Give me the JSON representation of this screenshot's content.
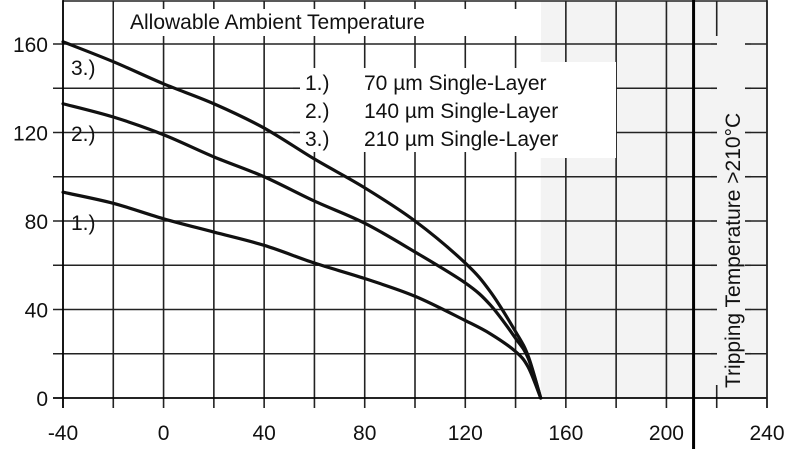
{
  "chart_data": {
    "type": "line",
    "title": "Allowable Ambient Temperature",
    "xlabel": "",
    "ylabel": "",
    "xlim": [
      -40,
      240
    ],
    "ylim": [
      0,
      180
    ],
    "x_ticks": [
      -40,
      0,
      40,
      80,
      120,
      160,
      200,
      240
    ],
    "y_ticks": [
      0,
      40,
      80,
      120,
      160
    ],
    "grid": true,
    "x_grid_step": 20,
    "y_grid_step": 20,
    "series": [
      {
        "name": "70 µm Single-Layer",
        "marker": "1.)",
        "x": [
          -40,
          -20,
          0,
          20,
          40,
          60,
          80,
          100,
          120,
          130,
          140,
          145,
          150
        ],
        "values": [
          93,
          88,
          81,
          75,
          69,
          61,
          54,
          46,
          35,
          29,
          21,
          14,
          0
        ]
      },
      {
        "name": "140 µm Single-Layer",
        "marker": "2.)",
        "x": [
          -40,
          -20,
          0,
          20,
          40,
          60,
          80,
          100,
          120,
          130,
          140,
          145,
          150
        ],
        "values": [
          133,
          127,
          119,
          109,
          100,
          89,
          79,
          66,
          52,
          42,
          27,
          18,
          0
        ]
      },
      {
        "name": "210 µm Single-Layer",
        "marker": "3.)",
        "x": [
          -40,
          -20,
          0,
          20,
          40,
          60,
          80,
          100,
          120,
          130,
          140,
          145,
          150
        ],
        "values": [
          161,
          152,
          142,
          133,
          122,
          108,
          95,
          80,
          61,
          48,
          30,
          19,
          0
        ]
      }
    ],
    "annotations": [
      {
        "text": "Tripping Temperature >210°C",
        "x": 210,
        "orientation": "vertical"
      },
      {
        "text": "shaded region",
        "x_from": 150,
        "x_to": 240
      }
    ],
    "legend": {
      "position": "upper-center",
      "entries": [
        {
          "marker": "1.)",
          "label": "70 µm Single-Layer"
        },
        {
          "marker": "2.)",
          "label": "140 µm Single-Layer"
        },
        {
          "marker": "3.)",
          "label": "210 µm Single-Layer"
        }
      ]
    },
    "tripping_line_x": 210,
    "shaded_from_x": 150
  },
  "labels": {
    "title": "Allowable Ambient Temperature",
    "tripping": "Tripping Temperature >210°C",
    "legend": [
      {
        "marker": "1.)",
        "label": "70 µm Single-Layer"
      },
      {
        "marker": "2.)",
        "label": "140 µm Single-Layer"
      },
      {
        "marker": "3.)",
        "label": "210 µm Single-Layer"
      }
    ],
    "curve_markers": [
      "1.)",
      "2.)",
      "3.)"
    ]
  },
  "colors": {
    "line": "#111111",
    "grid": "#222222",
    "shade": "#f3f3f3",
    "background": "#ffffff"
  }
}
